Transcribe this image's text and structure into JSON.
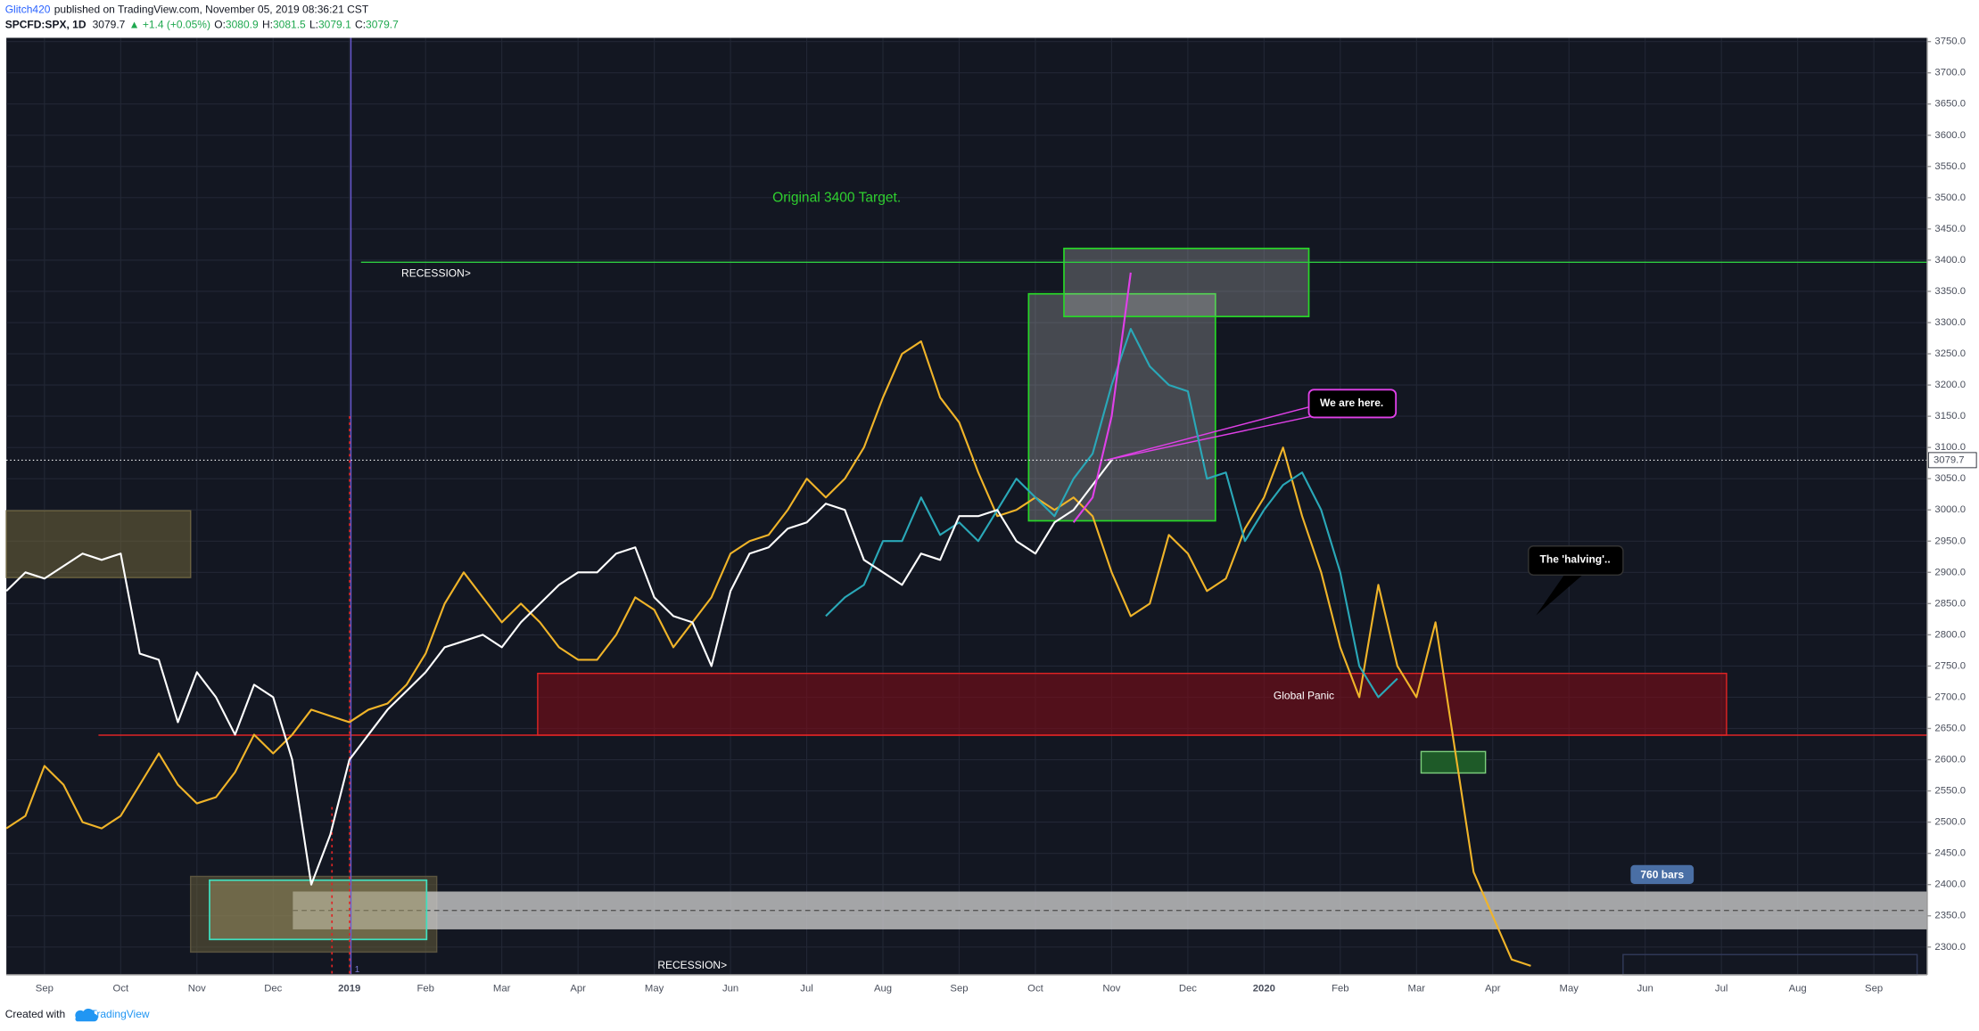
{
  "header": {
    "author": "Glitch420",
    "published": "published on TradingView.com, November 05, 2019 08:36:21 CST",
    "symbol": "SPCFD:SPX, 1D",
    "last": "3079.7",
    "change": "▲ +1.4 (+0.05%)",
    "ohlc": [
      {
        "label": "O:",
        "value": "3080.9"
      },
      {
        "label": "H:",
        "value": "3081.5"
      },
      {
        "label": "L:",
        "value": "3079.1"
      },
      {
        "label": "C:",
        "value": "3079.7"
      }
    ]
  },
  "footer": {
    "created": "Created with",
    "brand": "TradingView"
  },
  "chart_data": {
    "type": "line",
    "grid": true,
    "last_price": 3079.7,
    "ylim": [
      2255.6,
      3756
    ],
    "yticks": [
      {
        "value": 2300,
        "label": "2300.0"
      },
      {
        "value": 2350,
        "label": "2350.0"
      },
      {
        "value": 2400,
        "label": "2400.0"
      },
      {
        "value": 2450,
        "label": "2450.0"
      },
      {
        "value": 2500,
        "label": "2500.0"
      },
      {
        "value": 2550,
        "label": "2550.0"
      },
      {
        "value": 2600,
        "label": "2600.0"
      },
      {
        "value": 2650,
        "label": "2650.0"
      },
      {
        "value": 2700,
        "label": "2700.0"
      },
      {
        "value": 2750,
        "label": "2750.0"
      },
      {
        "value": 2800,
        "label": "2800.0"
      },
      {
        "value": 2850,
        "label": "2850.0"
      },
      {
        "value": 2900,
        "label": "2900.0"
      },
      {
        "value": 2950,
        "label": "2950.0"
      },
      {
        "value": 3000,
        "label": "3000.0"
      },
      {
        "value": 3050,
        "label": "3050.0"
      },
      {
        "value": 3100,
        "label": "3100.0"
      },
      {
        "value": 3150,
        "label": "3150.0"
      },
      {
        "value": 3200,
        "label": "3200.0"
      },
      {
        "value": 3250,
        "label": "3250.0"
      },
      {
        "value": 3300,
        "label": "3300.0"
      },
      {
        "value": 3350,
        "label": "3350.0"
      },
      {
        "value": 3400,
        "label": "3400.0"
      },
      {
        "value": 3450,
        "label": "3450.0"
      },
      {
        "value": 3500,
        "label": "3500.0"
      },
      {
        "value": 3550,
        "label": "3550.0"
      },
      {
        "value": 3600,
        "label": "3600.0"
      },
      {
        "value": 3650,
        "label": "3650.0"
      },
      {
        "value": 3700,
        "label": "3700.0"
      },
      {
        "value": 3750,
        "label": "3750.0"
      }
    ],
    "categories": [
      null,
      null,
      "Sep",
      null,
      null,
      null,
      "Oct",
      null,
      null,
      null,
      "Nov",
      null,
      null,
      null,
      "Dec",
      null,
      null,
      null,
      "2019",
      null,
      null,
      null,
      "Feb",
      null,
      null,
      null,
      "Mar",
      null,
      null,
      null,
      "Apr",
      null,
      null,
      null,
      "May",
      null,
      null,
      null,
      "Jun",
      null,
      null,
      null,
      "Jul",
      null,
      null,
      null,
      "Aug",
      null,
      null,
      null,
      "Sep",
      null,
      null,
      null,
      "Oct",
      null,
      null,
      null,
      "Nov",
      null,
      null,
      null,
      "Dec",
      null,
      null,
      null,
      "2020",
      null,
      null,
      null,
      "Feb",
      null,
      null,
      null,
      "Mar",
      null,
      null,
      null,
      "Apr",
      null,
      null,
      null,
      "May",
      null,
      null,
      null,
      "Jun",
      null,
      null,
      null,
      "Jul",
      null,
      null,
      null,
      "Aug",
      null,
      null,
      null,
      "Sep",
      null,
      null
    ],
    "series": [
      {
        "color": "#f0b429",
        "values": [
          2490,
          2510,
          2590,
          2560,
          2500,
          2490,
          2510,
          2560,
          2610,
          2560,
          2530,
          2540,
          2580,
          2640,
          2610,
          2640,
          2680,
          2670,
          2660,
          2680,
          2690,
          2720,
          2770,
          2850,
          2900,
          2860,
          2820,
          2850,
          2820,
          2780,
          2760,
          2760,
          2800,
          2860,
          2840,
          2780,
          2820,
          2860,
          2930,
          2950,
          2960,
          3000,
          3050,
          3020,
          3050,
          3100,
          3180,
          3250,
          3270,
          3180,
          3140,
          3060,
          2990,
          3000,
          3020,
          3000,
          3020,
          2990,
          2900,
          2830,
          2850,
          2960,
          2930,
          2870,
          2890,
          2970,
          3020,
          3100,
          2990,
          2900,
          2780,
          2700,
          2880,
          2750,
          2700,
          2820,
          2620,
          2420,
          2350,
          2280,
          2270,
          null,
          null,
          null,
          null,
          null,
          null,
          null,
          null,
          null,
          null,
          null,
          null,
          null,
          null,
          null,
          null,
          null,
          null,
          null,
          null
        ]
      },
      {
        "color": "#2aa8b8",
        "values": [
          null,
          null,
          null,
          null,
          null,
          null,
          null,
          null,
          null,
          null,
          null,
          null,
          null,
          null,
          null,
          null,
          null,
          null,
          null,
          null,
          null,
          null,
          null,
          null,
          null,
          null,
          null,
          null,
          null,
          null,
          null,
          null,
          null,
          null,
          null,
          null,
          null,
          null,
          null,
          null,
          null,
          null,
          null,
          2830,
          2860,
          2880,
          2950,
          2950,
          3020,
          2960,
          2980,
          2950,
          3000,
          3050,
          3020,
          2990,
          3050,
          3090,
          3200,
          3290,
          3230,
          3200,
          3190,
          3050,
          3060,
          2950,
          3000,
          3040,
          3060,
          3000,
          2900,
          2750,
          2700,
          2730,
          null,
          null,
          null,
          null,
          null,
          null,
          null,
          null,
          null,
          null,
          null,
          null,
          null,
          null,
          null,
          null,
          null,
          null,
          null,
          null,
          null,
          null,
          null,
          null,
          null,
          null,
          null
        ]
      },
      {
        "color": "#ffffff",
        "values": [
          2870,
          2900,
          2890,
          2910,
          2930,
          2920,
          2930,
          2770,
          2760,
          2660,
          2740,
          2700,
          2640,
          2720,
          2700,
          2600,
          2400,
          2480,
          2600,
          2640,
          2680,
          2710,
          2740,
          2780,
          2790,
          2800,
          2780,
          2820,
          2850,
          2880,
          2900,
          2900,
          2930,
          2940,
          2860,
          2830,
          2820,
          2750,
          2870,
          2930,
          2940,
          2970,
          2980,
          3010,
          3000,
          2920,
          2900,
          2880,
          2930,
          2920,
          2990,
          2990,
          3000,
          2950,
          2930,
          2980,
          3000,
          3040,
          3080,
          null,
          null,
          null,
          null,
          null,
          null,
          null,
          null,
          null,
          null,
          null,
          null,
          null,
          null,
          null,
          null,
          null,
          null,
          null,
          null,
          null,
          null,
          null,
          null,
          null,
          null,
          null,
          null,
          null,
          null,
          null,
          null,
          null,
          null,
          null,
          null,
          null,
          null,
          null,
          null,
          null,
          null
        ]
      },
      {
        "color": "#e040e8",
        "values": [
          null,
          null,
          null,
          null,
          null,
          null,
          null,
          null,
          null,
          null,
          null,
          null,
          null,
          null,
          null,
          null,
          null,
          null,
          null,
          null,
          null,
          null,
          null,
          null,
          null,
          null,
          null,
          null,
          null,
          null,
          null,
          null,
          null,
          null,
          null,
          null,
          null,
          null,
          null,
          null,
          null,
          null,
          null,
          null,
          null,
          null,
          null,
          null,
          null,
          null,
          null,
          null,
          null,
          null,
          null,
          null,
          2980,
          3020,
          3150,
          3380,
          null,
          null,
          null,
          null,
          null,
          null,
          null,
          null,
          null,
          null,
          null,
          null,
          null,
          null,
          null,
          null,
          null,
          null,
          null,
          null,
          null,
          null,
          null,
          null,
          null,
          null,
          null,
          null,
          null,
          null,
          null,
          null,
          null,
          null,
          null,
          null,
          null,
          null,
          null,
          null,
          null
        ]
      }
    ],
    "annotations": [
      "Original 3400 Target.",
      "RECESSION>",
      "We are here.",
      "The 'halving'..",
      "Global Panic",
      "RECESSION>",
      "760 bars",
      "1"
    ]
  }
}
